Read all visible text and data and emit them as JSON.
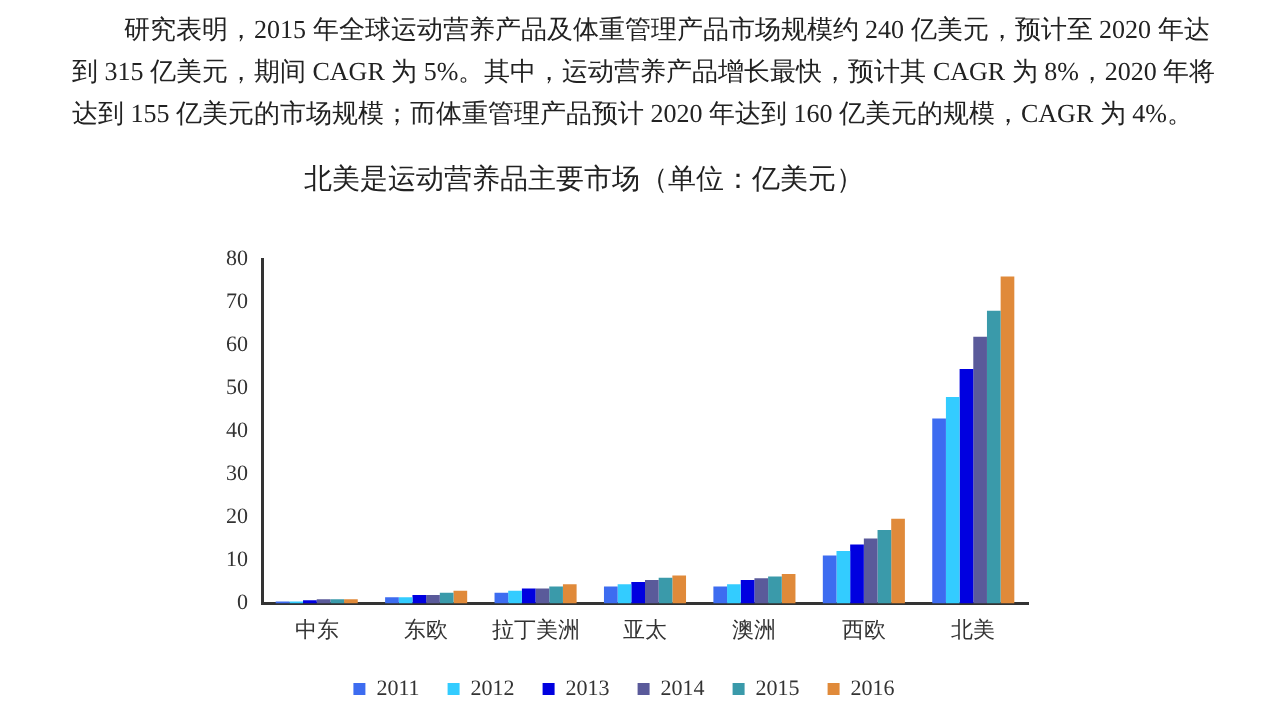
{
  "chart_data": {
    "type": "bar",
    "title": "北美是运动营养品主要市场（单位：亿美元）",
    "annotations": [
      "研究表明，2015 年全球运动营养产品及体重管理产品市场规模约 240 亿美元，预计至 2020 年达到 315 亿美元，期间 CAGR 为 5%。其中，运动营养产品增长最快，预计其 CAGR 为 8%，2020 年将达到 155 亿美元的市场规模；而体重管理产品预计 2020 年达到 160 亿美元的规模，CAGR 为 4%。"
    ],
    "categories": [
      "中东",
      "东欧",
      "拉丁美洲",
      "亚太",
      "澳洲",
      "西欧",
      "北美"
    ],
    "series": [
      {
        "name": "2011",
        "color": "#3d6cf0",
        "values": [
          0.5,
          1.5,
          2.5,
          4,
          4,
          11.2,
          43
        ]
      },
      {
        "name": "2012",
        "color": "#33ccff",
        "values": [
          0.5,
          1.5,
          3,
          4.5,
          4.5,
          12.2,
          48
        ]
      },
      {
        "name": "2013",
        "color": "#0000e0",
        "values": [
          0.8,
          2,
          3.5,
          5,
          5.5,
          13.7,
          54.5
        ]
      },
      {
        "name": "2014",
        "color": "#5a5a9a",
        "values": [
          1,
          2,
          3.5,
          5.5,
          5.9,
          15.1,
          62
        ]
      },
      {
        "name": "2015",
        "color": "#3a9aaa",
        "values": [
          1,
          2.5,
          4,
          6,
          6.3,
          17.1,
          68
        ]
      },
      {
        "name": "2016",
        "color": "#e08a3a",
        "values": [
          1,
          3,
          4.5,
          6.5,
          6.9,
          19.7,
          76
        ]
      }
    ],
    "ylim": [
      0,
      80
    ],
    "yticks": [
      0,
      10,
      20,
      30,
      40,
      50,
      60,
      70,
      80
    ],
    "grid": false,
    "legend": "bottom"
  }
}
